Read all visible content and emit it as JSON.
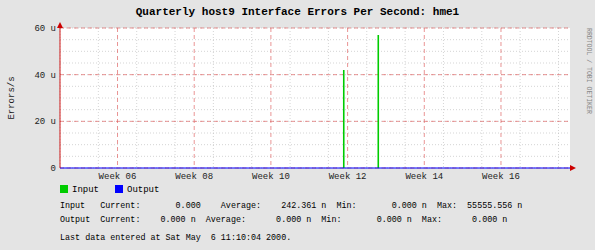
{
  "chart_data": {
    "type": "line",
    "title": "Quarterly host9 Interface Errors Per Second: hme1",
    "ylabel": "Errors/s",
    "series": [
      {
        "name": "Input",
        "type": "bar",
        "color": "#00cc00",
        "x": [
          11.9,
          12.8
        ],
        "values": [
          42,
          57
        ]
      },
      {
        "name": "Output",
        "type": "line",
        "color": "#0000ff",
        "x": [
          4.5,
          17.8
        ],
        "values": [
          0,
          0
        ]
      }
    ],
    "xlim": [
      4.5,
      17.8
    ],
    "xticks": [
      {
        "value": 6,
        "label": "Week 06"
      },
      {
        "value": 8,
        "label": "Week 08"
      },
      {
        "value": 10,
        "label": "Week 10"
      },
      {
        "value": 12,
        "label": "Week 12"
      },
      {
        "value": 14,
        "label": "Week 14"
      },
      {
        "value": 16,
        "label": "Week 16"
      }
    ],
    "ylim": [
      0,
      60
    ],
    "yticks": [
      0,
      {
        "value": 20,
        "label": "20 u"
      },
      {
        "value": 40,
        "label": "40 u"
      },
      {
        "value": 60,
        "label": "60 u"
      }
    ],
    "grid": true,
    "legend": "bottom",
    "annotations": [
      "Input   Current:       0.000    Average:    242.361 n  Min:       0.000 n  Max:  55555.556 n",
      "Output  Current:    0.000 n  Average:      0.000 n  Min:       0.000 n  Max:      0.000 n",
      "Last data entered at Sat May  6 11:10:04 2000.",
      "RRDTOOL / TOBI OETIKER"
    ]
  }
}
